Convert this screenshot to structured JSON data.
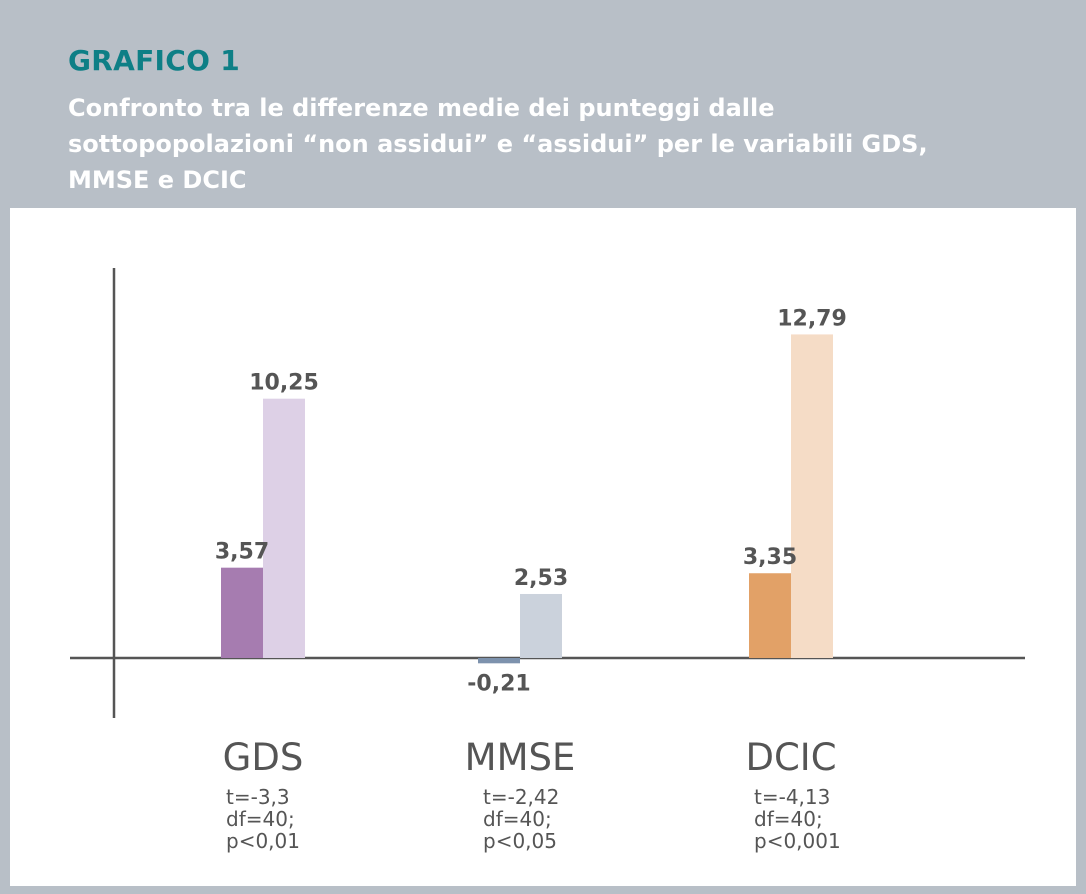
{
  "header": {
    "title": "GRAFICO 1",
    "subtitle": "Confronto tra le differenze medie dei punteggi dalle sottopopolazioni “non assidui” e “assidui” per le variabili GDS, MMSE e DCIC"
  },
  "chart_data": {
    "type": "bar",
    "categories": [
      "GDS",
      "MMSE",
      "DCIC"
    ],
    "series": [
      {
        "values": [
          3.57,
          -0.21,
          3.35
        ],
        "value_labels": [
          "3,57",
          "-0,21",
          "3,35"
        ]
      },
      {
        "values": [
          10.25,
          2.53,
          12.79
        ],
        "value_labels": [
          "10,25",
          "2,53",
          "12,79"
        ]
      }
    ],
    "colors": {
      "GDS": [
        "#a67cb0",
        "#ddd0e6"
      ],
      "MMSE": [
        "#7d92ad",
        "#cbd2dc"
      ],
      "DCIC": [
        "#e2a167",
        "#f5dcc6"
      ]
    },
    "stats": [
      [
        "t=-3,3",
        "df=40;",
        "p<0,01"
      ],
      [
        "t=-2,42",
        "df=40;",
        "p<0,05"
      ],
      [
        "t=-4,13",
        "df=40;",
        "p<0,001"
      ]
    ],
    "ylim": [
      -2.2,
      15.2
    ],
    "grid": false,
    "legend": "none"
  }
}
